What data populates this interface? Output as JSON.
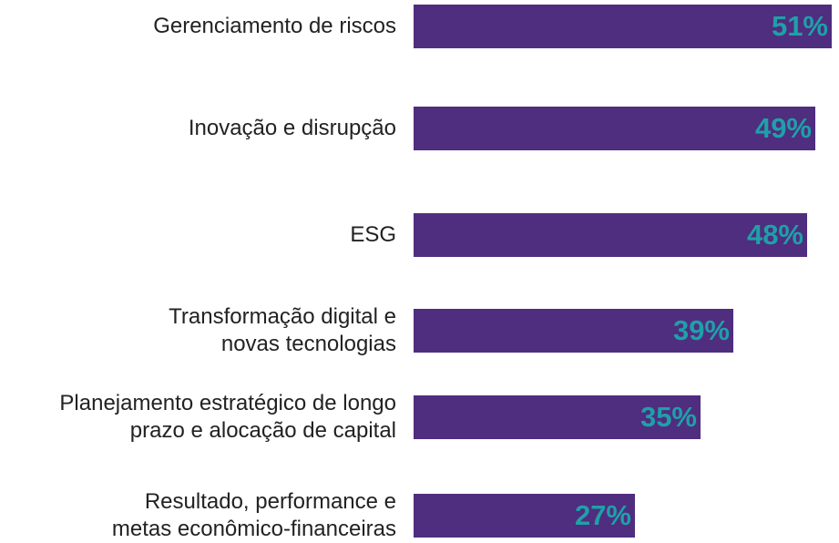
{
  "chart_data": {
    "type": "bar",
    "orientation": "horizontal",
    "categories": [
      "Gerenciamento de riscos",
      "Inovação e disrupção",
      "ESG",
      "Transformação digital e\nnovas tecnologias",
      "Planejamento estratégico de longo\nprazo e alocação de capital",
      "Resultado, performance e\nmetas econômico-financeiras"
    ],
    "values": [
      51,
      49,
      48,
      39,
      35,
      27
    ],
    "value_labels": [
      "51%",
      "49%",
      "48%",
      "39%",
      "35%",
      "27%"
    ],
    "color": "#4f2d7f",
    "label_color": "#1fa0a8"
  }
}
